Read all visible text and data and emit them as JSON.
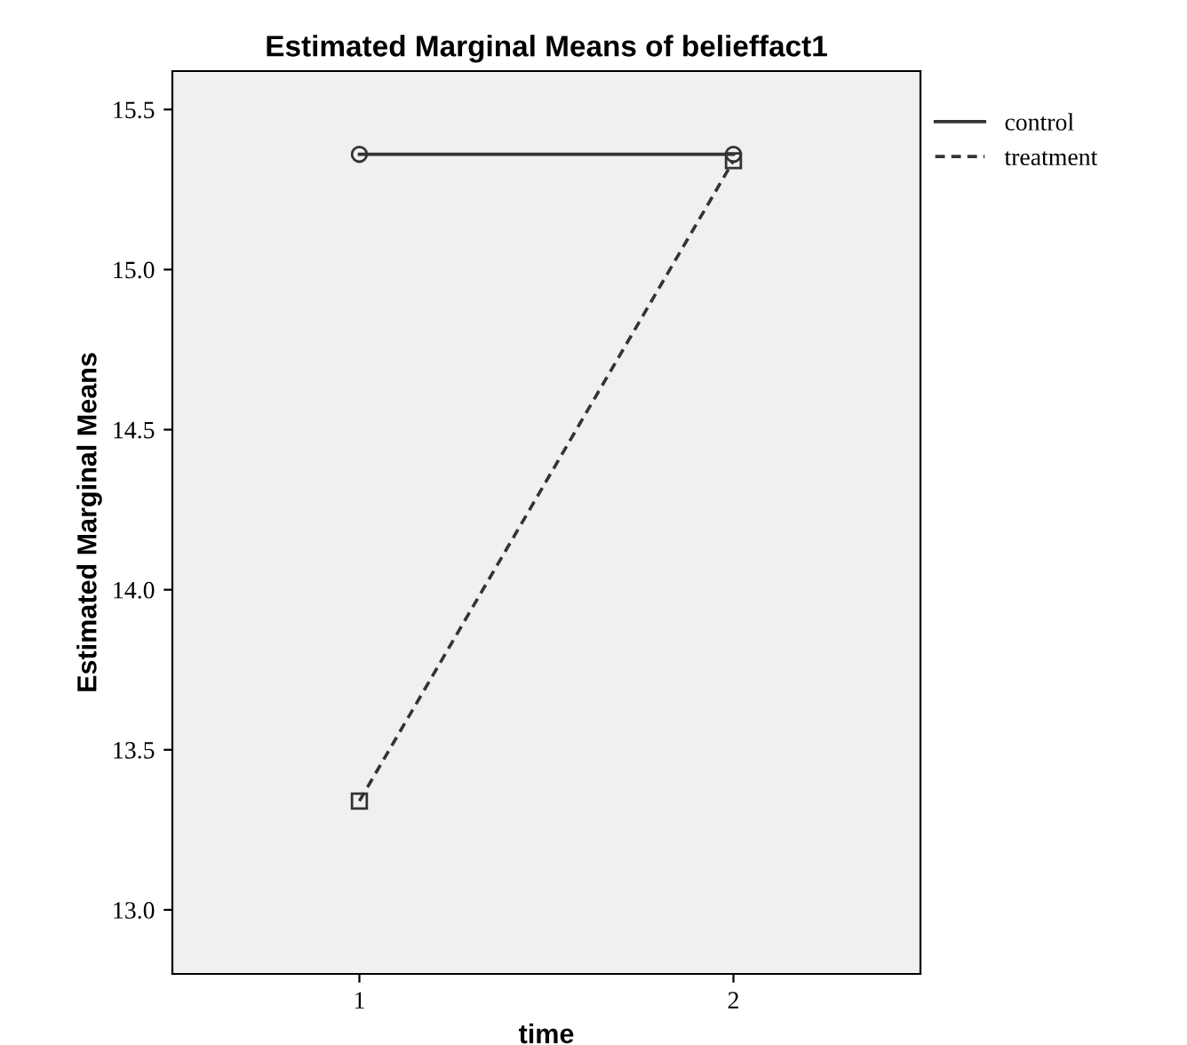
{
  "chart_data": {
    "type": "line",
    "title": "Estimated Marginal Means of belieffact1",
    "xlabel": "time",
    "ylabel": "Estimated Marginal Means",
    "categories": [
      "1",
      "2"
    ],
    "series": [
      {
        "name": "control",
        "color": "#333333",
        "values": [
          15.36,
          15.36
        ],
        "marker": "circle",
        "line_style": "solid"
      },
      {
        "name": "treatment",
        "color": "#333333",
        "values": [
          13.34,
          15.34
        ],
        "marker": "square",
        "line_style": "dashed"
      }
    ],
    "ylim": [
      12.8,
      15.62
    ],
    "yticks": [
      {
        "value": 13.0,
        "label": "13.0"
      },
      {
        "value": 13.5,
        "label": "13.5"
      },
      {
        "value": 14.0,
        "label": "14.0"
      },
      {
        "value": 14.5,
        "label": "14.5"
      },
      {
        "value": 15.0,
        "label": "15.0"
      },
      {
        "value": 15.5,
        "label": "15.5"
      }
    ],
    "grid": false,
    "legend": "top right"
  }
}
